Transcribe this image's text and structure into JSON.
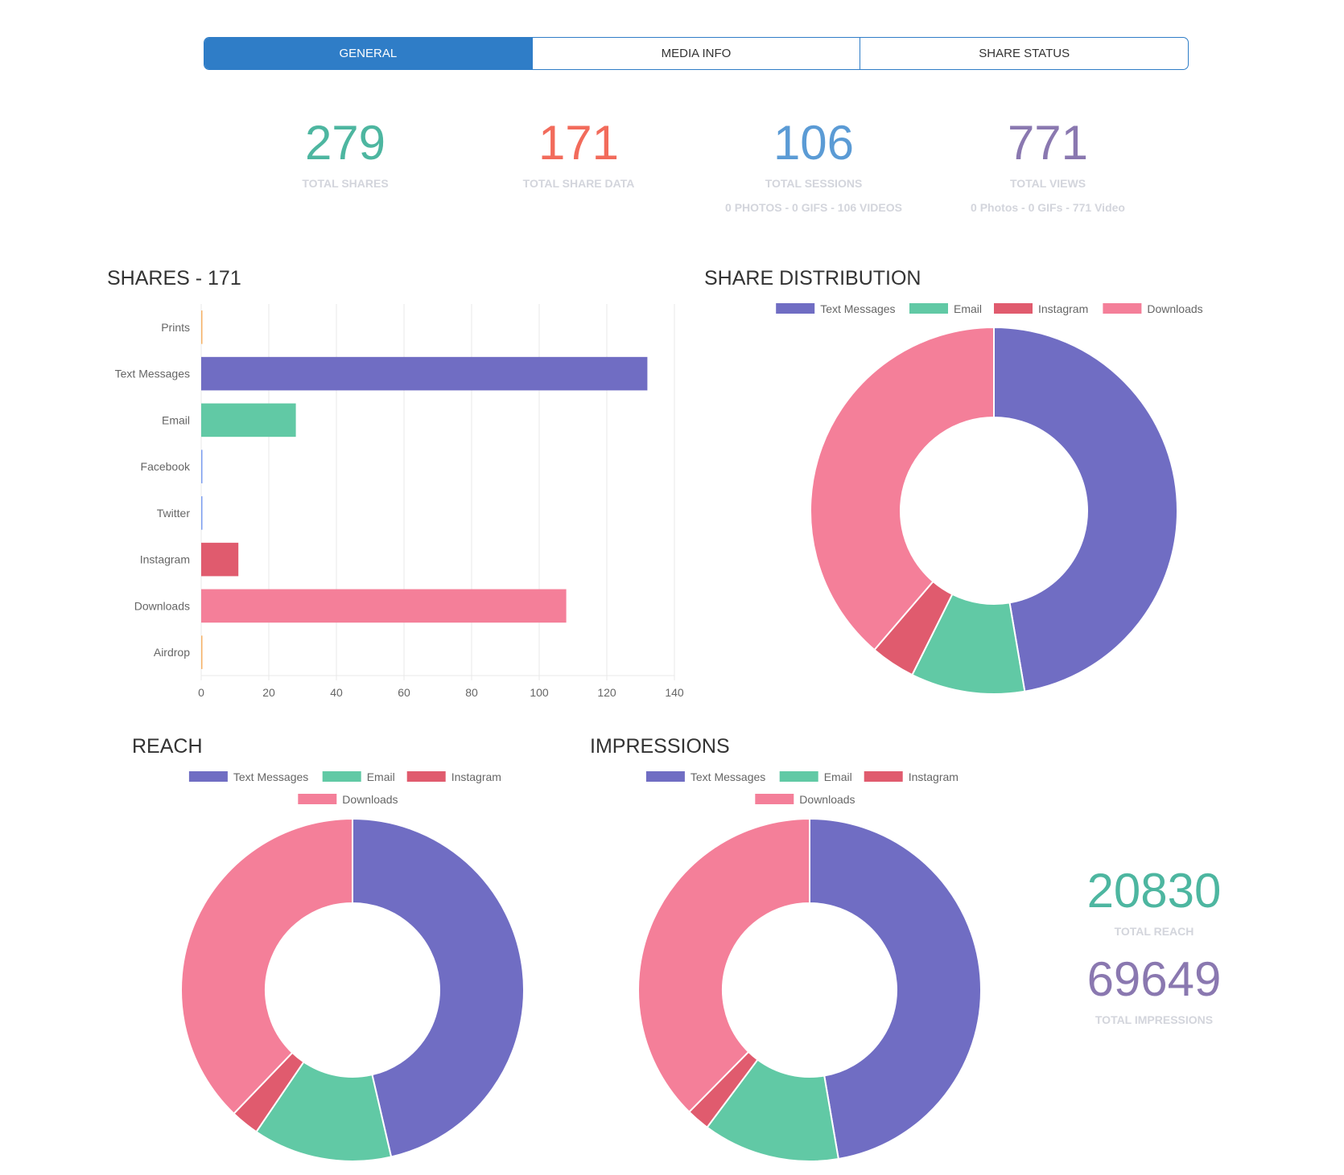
{
  "tabs": [
    {
      "label": "GENERAL",
      "active": true
    },
    {
      "label": "MEDIA INFO",
      "active": false
    },
    {
      "label": "SHARE STATUS",
      "active": false
    }
  ],
  "stats": [
    {
      "value": "279",
      "label": "TOTAL SHARES",
      "sub": "",
      "color": "#4db6a0"
    },
    {
      "value": "171",
      "label": "TOTAL SHARE DATA",
      "sub": "",
      "color": "#f26b5b"
    },
    {
      "value": "106",
      "label": "TOTAL SESSIONS",
      "sub": "0 PHOTOS - 0 GIFS - 106 VIDEOS",
      "color": "#5b9bd5"
    },
    {
      "value": "771",
      "label": "TOTAL VIEWS",
      "sub": "0 Photos - 0 GIFs - 771 Video",
      "color": "#8a78b0"
    }
  ],
  "totals": [
    {
      "value": "20830",
      "label": "TOTAL REACH",
      "color": "#4db6a0"
    },
    {
      "value": "69649",
      "label": "TOTAL IMPRESSIONS",
      "color": "#8a78b0"
    }
  ],
  "chart_data": [
    {
      "type": "bar",
      "orientation": "horizontal",
      "title": "SHARES - 171",
      "categories": [
        "Prints",
        "Text Messages",
        "Email",
        "Facebook",
        "Twitter",
        "Instagram",
        "Downloads",
        "Airdrop"
      ],
      "values": [
        0,
        132,
        28,
        0,
        0,
        11,
        108,
        0
      ],
      "colors": [
        "#f7b267",
        "#706dc3",
        "#61c9a5",
        "#7d9ef0",
        "#7d9ef0",
        "#e05b6e",
        "#f47f99",
        "#f7b267"
      ],
      "xlim": [
        0,
        140
      ],
      "xticks": [
        0,
        20,
        40,
        60,
        80,
        100,
        120,
        140
      ],
      "grid": true
    },
    {
      "type": "pie",
      "donut": true,
      "title": "SHARE DISTRIBUTION",
      "legend": "top",
      "categories": [
        "Text Messages",
        "Email",
        "Instagram",
        "Downloads"
      ],
      "values": [
        132,
        28,
        11,
        108
      ],
      "colors": [
        "#706dc3",
        "#61c9a5",
        "#e05b6e",
        "#f47f99"
      ]
    },
    {
      "type": "pie",
      "donut": true,
      "title": "REACH",
      "legend": "top",
      "categories": [
        "Text Messages",
        "Email",
        "Instagram",
        "Downloads"
      ],
      "values": [
        9660,
        2730,
        560,
        7880
      ],
      "colors": [
        "#706dc3",
        "#61c9a5",
        "#e05b6e",
        "#f47f99"
      ]
    },
    {
      "type": "pie",
      "donut": true,
      "title": "IMPRESSIONS",
      "legend": "top",
      "categories": [
        "Text Messages",
        "Email",
        "Instagram",
        "Downloads"
      ],
      "values": [
        32950,
        8980,
        1530,
        26189
      ],
      "colors": [
        "#706dc3",
        "#61c9a5",
        "#e05b6e",
        "#f47f99"
      ]
    }
  ]
}
